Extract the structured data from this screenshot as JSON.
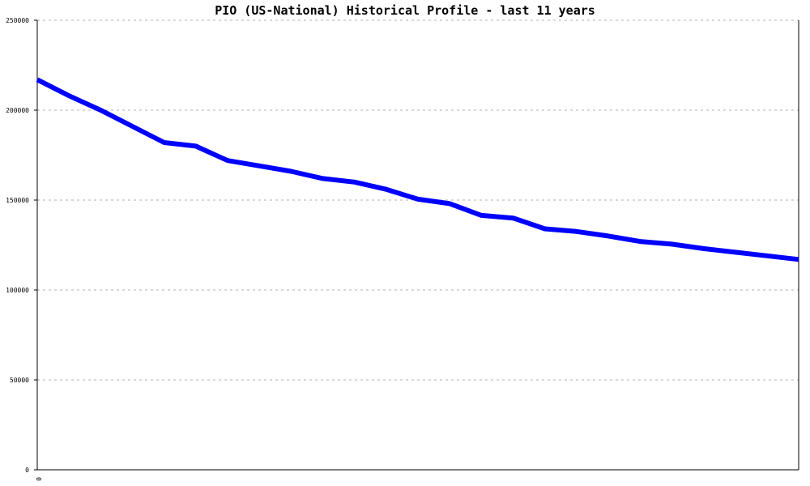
{
  "chart_data": {
    "type": "line",
    "title": "PIO (US-National) Historical Profile - last 11 years",
    "xlabel": "",
    "ylabel": "",
    "ylim": [
      0,
      250000
    ],
    "y_ticks": [
      "0",
      "50000",
      "100000",
      "150000",
      "200000",
      "250000"
    ],
    "y_tick_values": [
      0,
      50000,
      100000,
      150000,
      200000,
      250000
    ],
    "x_ticks": [
      "0"
    ],
    "grid": true,
    "series": [
      {
        "color": "#0000ff",
        "values": [
          217000,
          208000,
          200000,
          191000,
          182000,
          180000,
          172000,
          169000,
          166000,
          162000,
          160000,
          156000,
          150500,
          148000,
          141500,
          140000,
          134000,
          132500,
          130000,
          127000,
          125500,
          123000,
          121000,
          119000,
          117000
        ]
      }
    ]
  }
}
